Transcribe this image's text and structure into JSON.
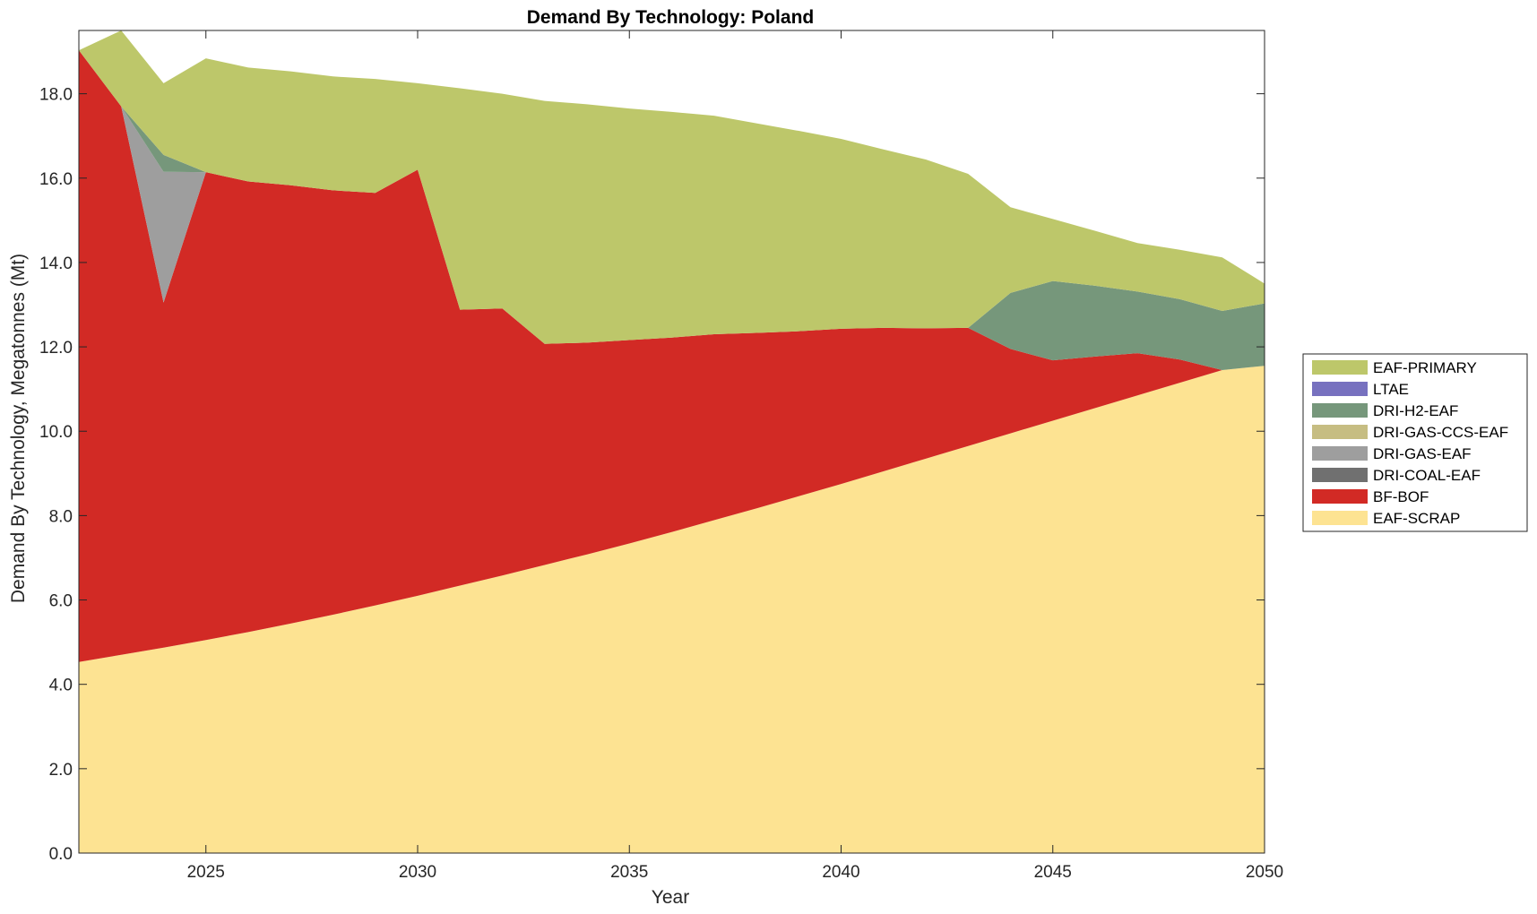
{
  "chart_data": {
    "type": "area",
    "stacked": true,
    "title": "Demand By Technology: Poland",
    "xlabel": "Year",
    "ylabel": "Demand By Technology, Megatonnes (Mt)",
    "xlim": [
      2022,
      2050
    ],
    "ylim": [
      0,
      19.5
    ],
    "xticks": [
      2025,
      2030,
      2035,
      2040,
      2045,
      2050
    ],
    "yticks": [
      0,
      2,
      4,
      6,
      8,
      10,
      12,
      14,
      16,
      18
    ],
    "ytick_labels": [
      "0.0",
      "2.0",
      "4.0",
      "6.0",
      "8.0",
      "10.0",
      "12.0",
      "14.0",
      "16.0",
      "18.0"
    ],
    "legend_position": "right",
    "x": [
      2022,
      2023,
      2024,
      2025,
      2026,
      2027,
      2028,
      2029,
      2030,
      2031,
      2032,
      2033,
      2034,
      2035,
      2036,
      2037,
      2038,
      2039,
      2040,
      2041,
      2042,
      2043,
      2044,
      2045,
      2046,
      2047,
      2048,
      2049,
      2050
    ],
    "series": [
      {
        "name": "EAF-SCRAP",
        "color": "#fde392",
        "values": [
          4.53,
          4.7,
          4.87,
          5.05,
          5.24,
          5.44,
          5.65,
          5.87,
          6.1,
          6.34,
          6.58,
          6.83,
          7.08,
          7.34,
          7.61,
          7.89,
          8.17,
          8.46,
          8.75,
          9.05,
          9.35,
          9.65,
          9.95,
          10.25,
          10.55,
          10.85,
          11.15,
          11.45,
          11.55
        ]
      },
      {
        "name": "BF-BOF",
        "color": "#d22a25",
        "values": [
          14.5,
          13.0,
          8.18,
          11.09,
          10.68,
          10.39,
          10.06,
          9.78,
          10.1,
          6.54,
          6.33,
          5.24,
          5.02,
          4.82,
          4.61,
          4.41,
          4.16,
          3.91,
          3.68,
          3.4,
          3.09,
          2.8,
          2.0,
          1.43,
          1.22,
          1.0,
          0.55,
          0.0,
          0.0
        ]
      },
      {
        "name": "DRI-COAL-EAF",
        "color": "#707070",
        "values": [
          0,
          0,
          0,
          0,
          0,
          0,
          0,
          0,
          0,
          0,
          0,
          0,
          0,
          0,
          0,
          0,
          0,
          0,
          0,
          0,
          0,
          0,
          0,
          0,
          0,
          0,
          0,
          0,
          0
        ]
      },
      {
        "name": "DRI-GAS-EAF",
        "color": "#9e9e9e",
        "values": [
          0,
          0,
          3.1,
          0,
          0,
          0,
          0,
          0,
          0,
          0,
          0,
          0,
          0,
          0,
          0,
          0,
          0,
          0,
          0,
          0,
          0,
          0,
          0,
          0,
          0,
          0,
          0,
          0,
          0
        ]
      },
      {
        "name": "DRI-GAS-CCS-EAF",
        "color": "#c6bd82",
        "values": [
          0,
          0,
          0,
          0,
          0,
          0,
          0,
          0,
          0,
          0,
          0,
          0,
          0,
          0,
          0,
          0,
          0,
          0,
          0,
          0,
          0,
          0,
          0,
          0,
          0,
          0,
          0,
          0,
          0
        ]
      },
      {
        "name": "DRI-H2-EAF",
        "color": "#76977b",
        "values": [
          0,
          0,
          0.4,
          0,
          0,
          0,
          0,
          0,
          0,
          0,
          0,
          0,
          0,
          0,
          0,
          0,
          0,
          0,
          0,
          0,
          0,
          0,
          1.33,
          1.88,
          1.68,
          1.46,
          1.43,
          1.4,
          1.48
        ]
      },
      {
        "name": "LTAE",
        "color": "#7771bf",
        "values": [
          0,
          0,
          0,
          0,
          0,
          0,
          0,
          0,
          0,
          0,
          0,
          0,
          0,
          0,
          0,
          0,
          0,
          0,
          0,
          0,
          0,
          0,
          0,
          0,
          0,
          0,
          0,
          0,
          0
        ]
      },
      {
        "name": "EAF-PRIMARY",
        "color": "#bdc76a",
        "values": [
          0.0,
          1.8,
          1.7,
          2.7,
          2.7,
          2.7,
          2.7,
          2.7,
          2.05,
          5.25,
          5.09,
          5.76,
          5.65,
          5.49,
          5.35,
          5.18,
          4.97,
          4.75,
          4.5,
          4.23,
          4.0,
          3.65,
          2.03,
          1.47,
          1.3,
          1.15,
          1.17,
          1.27,
          0.47
        ]
      }
    ],
    "legend_order": [
      "EAF-PRIMARY",
      "LTAE",
      "DRI-H2-EAF",
      "DRI-GAS-CCS-EAF",
      "DRI-GAS-EAF",
      "DRI-COAL-EAF",
      "BF-BOF",
      "EAF-SCRAP"
    ]
  }
}
